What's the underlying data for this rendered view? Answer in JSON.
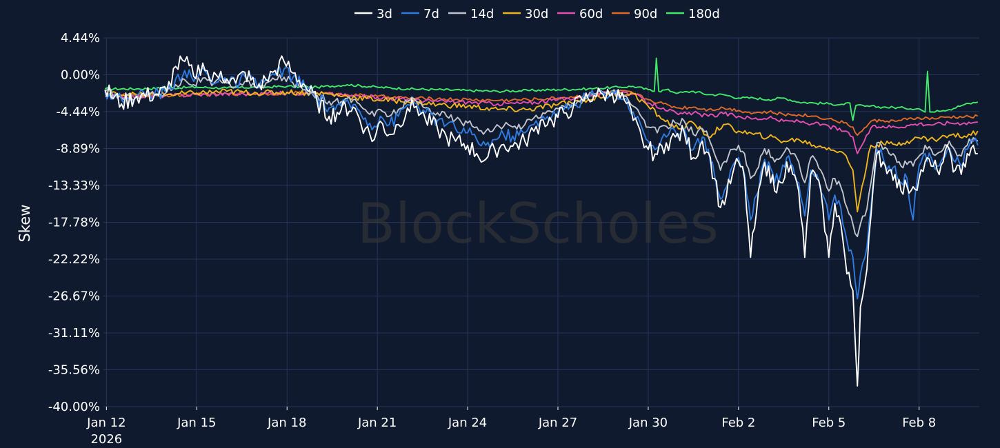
{
  "chart_data": {
    "type": "line",
    "title": "",
    "xlabel": "",
    "ylabel": "Skew",
    "ylim": [
      -40.0,
      4.44
    ],
    "yticks": [
      "4.44%",
      "0.00%",
      "-4.44%",
      "-8.89%",
      "-13.33%",
      "-17.78%",
      "-22.22%",
      "-26.67%",
      "-31.11%",
      "-35.56%",
      "-40.00%"
    ],
    "ytick_values": [
      4.44,
      0.0,
      -4.44,
      -8.89,
      -13.33,
      -17.78,
      -22.22,
      -26.67,
      -31.11,
      -35.56,
      -40.0
    ],
    "xticks": [
      {
        "label": "Jan 12",
        "sub": "2026",
        "day": 0
      },
      {
        "label": "Jan 15",
        "sub": "",
        "day": 3
      },
      {
        "label": "Jan 18",
        "sub": "",
        "day": 6
      },
      {
        "label": "Jan 21",
        "sub": "",
        "day": 9
      },
      {
        "label": "Jan 24",
        "sub": "",
        "day": 12
      },
      {
        "label": "Jan 27",
        "sub": "",
        "day": 15
      },
      {
        "label": "Jan 30",
        "sub": "",
        "day": 18
      },
      {
        "label": "Feb 2",
        "sub": "",
        "day": 21
      },
      {
        "label": "Feb 5",
        "sub": "",
        "day": 24
      },
      {
        "label": "Feb 8",
        "sub": "",
        "day": 27
      }
    ],
    "x_date_range": [
      "2026-01-11 22:00",
      "2026-02-10 03:00"
    ],
    "grid": true,
    "legend_position": "top-center",
    "watermark": "BlockScholes",
    "series": [
      {
        "name": "3d",
        "color": "#ffffff",
        "x": [
          -0.05,
          0.5,
          1.0,
          1.6,
          2.0,
          2.3,
          2.6,
          2.9,
          3.2,
          3.5,
          3.8,
          4.0,
          4.3,
          4.6,
          5.0,
          5.3,
          5.6,
          5.9,
          6.2,
          6.6,
          7.0,
          7.4,
          7.8,
          8.2,
          8.6,
          8.9,
          9.1,
          9.4,
          9.7,
          10.0,
          10.3,
          10.6,
          11.0,
          11.3,
          11.6,
          12.0,
          12.3,
          12.6,
          12.9,
          13.2,
          13.5,
          13.9,
          14.2,
          14.5,
          14.8,
          15.2,
          15.5,
          15.8,
          16.2,
          16.5,
          16.8,
          17.2,
          17.5,
          17.8,
          18.0,
          18.3,
          18.6,
          18.9,
          19.2,
          19.5,
          19.8,
          20.0,
          20.2,
          20.4,
          20.6,
          20.8,
          21.0,
          21.2,
          21.4,
          21.6,
          21.8,
          22.0,
          22.2,
          22.4,
          22.6,
          22.8,
          23.0,
          23.2,
          23.4,
          23.6,
          23.8,
          24.0,
          24.2,
          24.4,
          24.6,
          24.8,
          24.95,
          25.05,
          25.2,
          25.4,
          25.6,
          25.8,
          26.0,
          26.2,
          26.4,
          26.6,
          26.8,
          27.0,
          27.2,
          27.4,
          27.6,
          27.8,
          28.0,
          28.2,
          28.4,
          28.6,
          28.8,
          28.95
        ],
        "y": [
          -1.8,
          -3.5,
          -2.6,
          -2.4,
          -2.0,
          1.0,
          1.6,
          -0.2,
          1.4,
          -0.8,
          0.4,
          -0.5,
          -1.0,
          0.3,
          -1.6,
          -0.6,
          0.5,
          1.6,
          0.2,
          -1.3,
          -3.3,
          -5.0,
          -4.2,
          -3.9,
          -6.5,
          -7.8,
          -5.6,
          -7.2,
          -6.0,
          -4.0,
          -3.8,
          -5.4,
          -6.5,
          -7.5,
          -8.0,
          -8.5,
          -9.5,
          -10.2,
          -9.0,
          -8.4,
          -8.6,
          -8.0,
          -6.8,
          -5.4,
          -5.6,
          -4.6,
          -4.0,
          -3.0,
          -2.5,
          -2.4,
          -2.2,
          -3.0,
          -5.5,
          -7.8,
          -9.0,
          -9.6,
          -8.2,
          -7.5,
          -7.0,
          -10.0,
          -8.0,
          -9.4,
          -12.5,
          -16.0,
          -14.5,
          -12.0,
          -10.5,
          -12.5,
          -22.0,
          -16.5,
          -11.5,
          -11.0,
          -14.0,
          -13.0,
          -10.5,
          -12.0,
          -14.0,
          -22.0,
          -12.0,
          -12.5,
          -16.0,
          -22.0,
          -15.5,
          -18.0,
          -24.0,
          -26.0,
          -37.5,
          -28.0,
          -25.0,
          -17.0,
          -9.5,
          -10.5,
          -11.5,
          -12.0,
          -14.0,
          -13.5,
          -13.5,
          -12.5,
          -10.5,
          -11.0,
          -11.5,
          -10.5,
          -9.0,
          -11.5,
          -12.0,
          -9.5,
          -8.5,
          -9.5
        ]
      },
      {
        "name": "7d",
        "color": "#2f7be0",
        "x": [
          -0.05,
          0.5,
          1.0,
          1.6,
          2.0,
          2.3,
          2.6,
          2.9,
          3.2,
          3.5,
          3.8,
          4.0,
          4.3,
          4.6,
          5.0,
          5.3,
          5.6,
          5.9,
          6.2,
          6.6,
          7.0,
          7.4,
          7.8,
          8.2,
          8.6,
          8.9,
          9.1,
          9.4,
          9.7,
          10.0,
          10.3,
          10.6,
          11.0,
          11.3,
          11.6,
          12.0,
          12.3,
          12.6,
          12.9,
          13.2,
          13.5,
          13.9,
          14.2,
          14.5,
          14.8,
          15.2,
          15.5,
          15.8,
          16.2,
          16.5,
          16.8,
          17.2,
          17.5,
          17.8,
          18.0,
          18.3,
          18.6,
          18.9,
          19.2,
          19.5,
          19.8,
          20.0,
          20.2,
          20.4,
          20.6,
          20.8,
          21.0,
          21.2,
          21.4,
          21.6,
          21.8,
          22.0,
          22.2,
          22.4,
          22.6,
          22.8,
          23.0,
          23.2,
          23.4,
          23.6,
          23.8,
          24.0,
          24.2,
          24.4,
          24.6,
          24.8,
          24.95,
          25.05,
          25.2,
          25.4,
          25.6,
          25.8,
          26.0,
          26.2,
          26.4,
          26.6,
          26.8,
          27.0,
          27.2,
          27.4,
          27.6,
          27.8,
          28.0,
          28.2,
          28.4,
          28.6,
          28.8,
          28.95
        ],
        "y": [
          -2.0,
          -3.0,
          -2.5,
          -2.3,
          -2.0,
          -0.5,
          0.5,
          -0.8,
          0.8,
          -1.0,
          0.0,
          -0.6,
          -1.2,
          -0.2,
          -1.4,
          -0.6,
          0.0,
          0.7,
          -0.3,
          -1.5,
          -2.8,
          -4.0,
          -3.8,
          -3.6,
          -5.2,
          -6.2,
          -5.0,
          -6.0,
          -5.0,
          -3.6,
          -3.5,
          -4.6,
          -5.5,
          -6.0,
          -6.5,
          -7.0,
          -7.8,
          -8.5,
          -7.8,
          -7.2,
          -7.4,
          -7.0,
          -6.0,
          -5.0,
          -5.0,
          -4.2,
          -3.6,
          -3.0,
          -2.4,
          -2.2,
          -2.0,
          -2.8,
          -4.5,
          -6.5,
          -8.0,
          -8.8,
          -7.5,
          -6.8,
          -6.5,
          -9.0,
          -7.5,
          -9.0,
          -12.0,
          -15.0,
          -13.5,
          -11.0,
          -10.0,
          -12.0,
          -17.5,
          -14.5,
          -11.0,
          -10.5,
          -13.0,
          -12.0,
          -10.0,
          -11.0,
          -13.0,
          -17.0,
          -11.5,
          -12.0,
          -14.5,
          -17.5,
          -14.5,
          -16.0,
          -20.0,
          -22.0,
          -27.0,
          -24.0,
          -22.0,
          -16.0,
          -9.0,
          -10.0,
          -11.0,
          -11.0,
          -13.0,
          -12.5,
          -17.5,
          -11.0,
          -9.5,
          -10.0,
          -11.0,
          -10.0,
          -8.8,
          -10.5,
          -11.0,
          -9.0,
          -8.0,
          -8.5
        ]
      },
      {
        "name": "14d",
        "color": "#c0c4cc",
        "x": [
          -0.05,
          0.5,
          1.0,
          1.6,
          2.0,
          2.3,
          2.6,
          2.9,
          3.2,
          3.5,
          3.8,
          4.0,
          4.3,
          4.6,
          5.0,
          5.3,
          5.6,
          5.9,
          6.2,
          6.6,
          7.0,
          7.4,
          7.8,
          8.2,
          8.6,
          8.9,
          9.1,
          9.4,
          9.7,
          10.0,
          10.3,
          10.6,
          11.0,
          11.3,
          11.6,
          12.0,
          12.3,
          12.6,
          12.9,
          13.2,
          13.5,
          13.9,
          14.2,
          14.5,
          14.8,
          15.2,
          15.5,
          15.8,
          16.2,
          16.5,
          16.8,
          17.2,
          17.5,
          17.8,
          18.0,
          18.3,
          18.6,
          18.9,
          19.2,
          19.5,
          19.8,
          20.0,
          20.2,
          20.4,
          20.6,
          20.8,
          21.0,
          21.2,
          21.4,
          21.6,
          21.8,
          22.0,
          22.2,
          22.4,
          22.6,
          22.8,
          23.0,
          23.2,
          23.4,
          23.6,
          23.8,
          24.0,
          24.2,
          24.4,
          24.6,
          24.8,
          24.95,
          25.05,
          25.2,
          25.4,
          25.6,
          25.8,
          26.0,
          26.2,
          26.4,
          26.6,
          26.8,
          27.0,
          27.2,
          27.4,
          27.6,
          27.8,
          28.0,
          28.2,
          28.4,
          28.6,
          28.8,
          28.95
        ],
        "y": [
          -2.0,
          -2.8,
          -2.5,
          -2.4,
          -2.1,
          -1.2,
          -0.6,
          -1.2,
          -0.4,
          -1.3,
          -0.8,
          -1.0,
          -1.4,
          -0.8,
          -1.6,
          -1.0,
          -0.6,
          -0.3,
          -1.0,
          -1.8,
          -2.5,
          -3.2,
          -3.2,
          -3.0,
          -4.2,
          -5.0,
          -4.2,
          -5.0,
          -4.2,
          -3.2,
          -3.2,
          -4.0,
          -4.6,
          -5.0,
          -5.4,
          -5.8,
          -6.3,
          -6.8,
          -6.4,
          -6.2,
          -6.3,
          -6.0,
          -5.2,
          -4.6,
          -4.5,
          -3.8,
          -3.4,
          -2.8,
          -2.3,
          -2.1,
          -2.0,
          -2.6,
          -3.8,
          -5.2,
          -6.3,
          -7.0,
          -6.2,
          -5.8,
          -5.6,
          -7.2,
          -6.5,
          -7.5,
          -9.5,
          -11.5,
          -10.5,
          -9.0,
          -8.5,
          -9.5,
          -12.5,
          -11.5,
          -9.5,
          -9.0,
          -10.5,
          -10.0,
          -8.8,
          -9.5,
          -10.5,
          -13.0,
          -10.0,
          -10.5,
          -12.0,
          -14.0,
          -12.5,
          -13.5,
          -16.0,
          -18.0,
          -19.5,
          -18.0,
          -17.0,
          -13.0,
          -8.2,
          -9.0,
          -9.5,
          -9.8,
          -11.0,
          -10.8,
          -11.0,
          -9.8,
          -8.5,
          -9.0,
          -9.5,
          -9.0,
          -8.0,
          -9.2,
          -9.8,
          -8.5,
          -7.6,
          -8.0
        ]
      },
      {
        "name": "30d",
        "color": "#f0b51c",
        "x": [
          -0.05,
          1.0,
          2.0,
          3.0,
          4.0,
          5.0,
          6.0,
          7.0,
          8.0,
          9.0,
          10.0,
          11.0,
          12.0,
          13.0,
          14.0,
          15.0,
          16.0,
          17.0,
          17.5,
          18.0,
          18.5,
          19.0,
          19.5,
          20.0,
          20.5,
          21.0,
          21.5,
          22.0,
          22.5,
          23.0,
          23.5,
          24.0,
          24.5,
          24.8,
          24.95,
          25.1,
          25.4,
          25.8,
          26.2,
          26.6,
          27.0,
          27.5,
          28.0,
          28.5,
          28.95
        ],
        "y": [
          -2.3,
          -2.4,
          -2.4,
          -2.2,
          -2.0,
          -2.2,
          -2.1,
          -2.2,
          -2.6,
          -3.0,
          -3.2,
          -3.6,
          -3.8,
          -4.2,
          -4.2,
          -3.6,
          -3.0,
          -2.2,
          -2.3,
          -3.8,
          -5.4,
          -6.5,
          -5.8,
          -7.5,
          -6.0,
          -6.8,
          -7.2,
          -7.5,
          -8.0,
          -7.8,
          -8.5,
          -8.8,
          -9.5,
          -11.5,
          -16.5,
          -13.5,
          -8.5,
          -8.3,
          -8.4,
          -8.0,
          -7.6,
          -7.8,
          -7.3,
          -7.4,
          -6.8
        ]
      },
      {
        "name": "60d",
        "color": "#e54fb0",
        "x": [
          -0.05,
          1.0,
          2.0,
          3.0,
          4.0,
          5.0,
          6.0,
          7.0,
          8.0,
          9.0,
          10.0,
          11.0,
          12.0,
          13.0,
          14.0,
          15.0,
          16.0,
          17.0,
          17.5,
          18.0,
          18.5,
          19.0,
          19.5,
          20.0,
          20.5,
          21.0,
          21.5,
          22.0,
          22.5,
          23.0,
          23.5,
          24.0,
          24.5,
          24.8,
          24.95,
          25.1,
          25.4,
          25.8,
          26.2,
          26.6,
          27.0,
          27.5,
          28.0,
          28.5,
          28.95
        ],
        "y": [
          -2.6,
          -2.6,
          -2.5,
          -2.4,
          -2.3,
          -2.3,
          -2.2,
          -2.2,
          -2.5,
          -2.7,
          -3.0,
          -3.2,
          -3.3,
          -3.5,
          -3.4,
          -3.0,
          -2.6,
          -2.0,
          -2.3,
          -3.4,
          -4.0,
          -4.8,
          -4.6,
          -5.0,
          -4.7,
          -5.0,
          -5.3,
          -5.2,
          -5.6,
          -5.6,
          -5.9,
          -6.2,
          -6.8,
          -7.5,
          -9.5,
          -8.5,
          -6.4,
          -6.2,
          -6.3,
          -6.1,
          -5.9,
          -6.0,
          -5.8,
          -5.8,
          -5.7
        ]
      },
      {
        "name": "90d",
        "color": "#e06a25",
        "x": [
          -0.05,
          1.0,
          2.0,
          3.0,
          4.0,
          5.0,
          6.0,
          7.0,
          8.0,
          9.0,
          10.0,
          11.0,
          12.0,
          13.0,
          14.0,
          15.0,
          16.0,
          17.0,
          17.5,
          18.0,
          18.5,
          19.0,
          19.5,
          20.0,
          20.5,
          21.0,
          21.5,
          22.0,
          22.5,
          23.0,
          23.5,
          24.0,
          24.5,
          24.8,
          24.95,
          25.1,
          25.4,
          25.8,
          26.2,
          26.6,
          27.0,
          27.5,
          28.0,
          28.5,
          28.95
        ],
        "y": [
          -2.4,
          -2.5,
          -2.5,
          -2.4,
          -2.3,
          -2.3,
          -2.2,
          -2.2,
          -2.4,
          -2.6,
          -2.8,
          -2.9,
          -3.0,
          -3.1,
          -3.0,
          -2.8,
          -2.5,
          -2.0,
          -2.2,
          -3.0,
          -3.5,
          -4.0,
          -3.9,
          -4.2,
          -4.0,
          -4.3,
          -4.6,
          -4.5,
          -4.8,
          -4.8,
          -5.0,
          -5.3,
          -5.8,
          -6.3,
          -7.3,
          -6.8,
          -5.6,
          -5.5,
          -5.6,
          -5.4,
          -5.2,
          -5.3,
          -5.1,
          -5.1,
          -5.0
        ]
      },
      {
        "name": "180d",
        "color": "#41e86a",
        "x": [
          -0.05,
          1.0,
          2.0,
          3.0,
          4.0,
          5.0,
          6.0,
          7.0,
          8.0,
          9.0,
          10.0,
          11.0,
          12.0,
          13.0,
          14.0,
          15.0,
          16.0,
          17.0,
          17.5,
          18.0,
          18.2,
          18.27,
          18.35,
          18.6,
          19.0,
          19.5,
          20.0,
          20.5,
          21.0,
          21.5,
          22.0,
          22.5,
          23.0,
          23.5,
          24.0,
          24.5,
          24.7,
          24.8,
          24.9,
          25.2,
          25.8,
          26.5,
          27.0,
          27.2,
          27.28,
          27.36,
          27.6,
          28.0,
          28.5,
          28.95
        ],
        "y": [
          -1.7,
          -1.7,
          -1.6,
          -1.5,
          -1.6,
          -1.5,
          -1.4,
          -1.5,
          -1.2,
          -1.5,
          -1.7,
          -1.8,
          -1.9,
          -2.0,
          -1.9,
          -1.8,
          -1.7,
          -1.5,
          -1.4,
          -1.8,
          -2.0,
          2.0,
          -2.0,
          -1.8,
          -2.2,
          -2.0,
          -2.4,
          -2.4,
          -2.8,
          -2.8,
          -3.0,
          -2.8,
          -3.3,
          -3.4,
          -3.5,
          -3.6,
          -3.4,
          -5.5,
          -3.7,
          -3.8,
          -3.9,
          -4.0,
          -4.1,
          -4.5,
          0.4,
          -4.5,
          -4.3,
          -4.2,
          -3.6,
          -3.3
        ]
      }
    ]
  }
}
